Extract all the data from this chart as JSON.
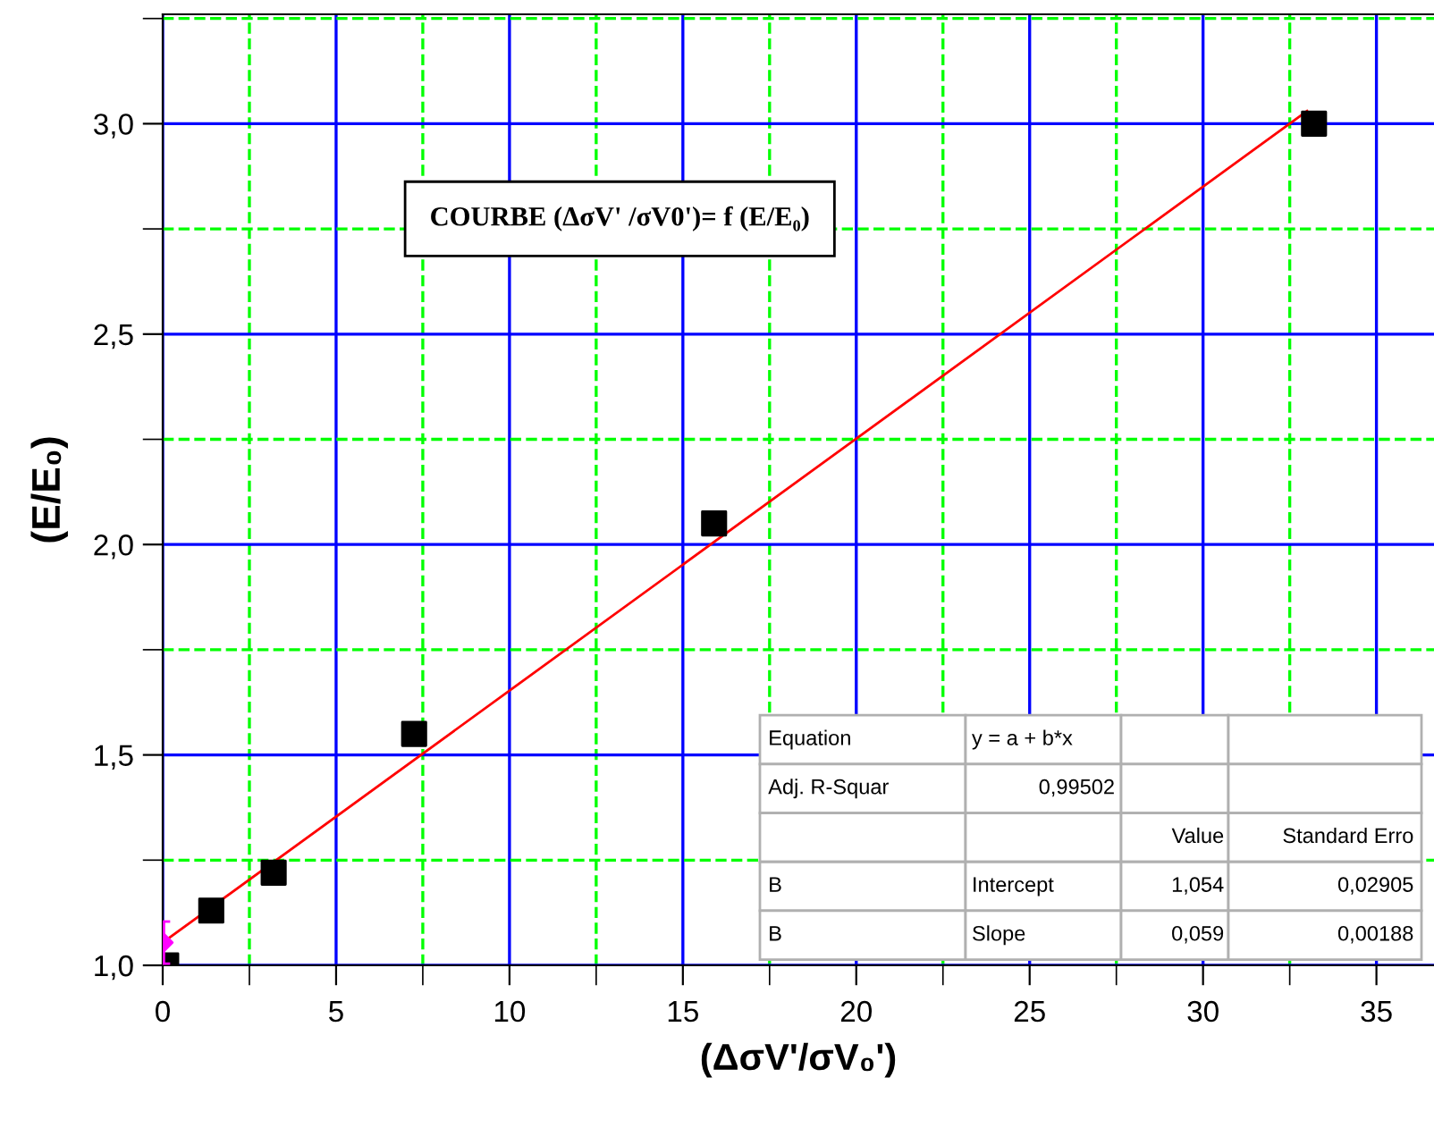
{
  "chart_data": {
    "type": "scatter",
    "title": "COURBE (ΔσV' /σV0')= f (E/E₀)",
    "xlabel": "(ΔσV'/σV₀')",
    "ylabel": "(E/E₀)",
    "series": [
      {
        "color": "#000000",
        "marker": "square",
        "x": [
          0.1,
          1.4,
          3.2,
          7.25,
          15.9,
          33.2
        ],
        "values": [
          1.0,
          1.13,
          1.22,
          1.55,
          2.05,
          3.0
        ]
      },
      {
        "type": "line",
        "color": "#ff0000",
        "marker": "none",
        "line_style": "solid",
        "x": [
          0,
          33.0
        ],
        "values": [
          1.054,
          3.03
        ]
      },
      {
        "color": "#ff00ff",
        "marker": "diamond",
        "x": [
          0
        ],
        "values": [
          1.054
        ],
        "errors": [
          0.05
        ]
      }
    ],
    "xlim": [
      0,
      36.66
    ],
    "ylim": [
      1.0,
      3.26
    ],
    "xticks": [
      0,
      {
        "value": 2.5,
        "label": null
      },
      5,
      {
        "value": 7.5,
        "label": null
      },
      10,
      {
        "value": 12.5,
        "label": null
      },
      15,
      {
        "value": 17.5,
        "label": null
      },
      20,
      {
        "value": 22.5,
        "label": null
      },
      25,
      {
        "value": 27.5,
        "label": null
      },
      30,
      {
        "value": 32.5,
        "label": null
      },
      35
    ],
    "yticks": [
      {
        "value": 1.0,
        "label": "1,0"
      },
      {
        "value": 1.25,
        "label": null
      },
      {
        "value": 1.5,
        "label": "1,5"
      },
      {
        "value": 1.75,
        "label": null
      },
      {
        "value": 2.0,
        "label": "2,0"
      },
      {
        "value": 2.25,
        "label": null
      },
      {
        "value": 2.5,
        "label": "2,5"
      },
      {
        "value": 2.75,
        "label": null
      },
      {
        "value": 3.0,
        "label": "3,0"
      },
      {
        "value": 3.25,
        "label": null
      }
    ],
    "grid": true,
    "legend": false,
    "annotations": [
      "Equation",
      "y = a + b*x",
      "Adj. R-Squar",
      "0,99502",
      "Value",
      "Standard Erro",
      "B",
      "Intercept",
      "1,054",
      "0,02905",
      "B",
      "Slope",
      "0,059",
      "0,00188"
    ]
  }
}
